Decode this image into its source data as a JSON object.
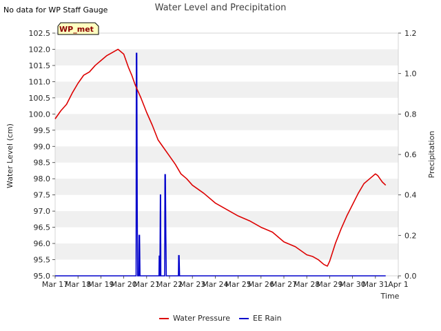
{
  "header": {
    "note": "No data for WP Staff Gauge",
    "title": "Water Level and Precipitation",
    "badge": "WP_met"
  },
  "colors": {
    "water_pressure": "#dd0000",
    "ee_rain": "#0000cc",
    "band": "#f0f0f0",
    "badge_fill": "#ffffc0",
    "badge_border": "#000000"
  },
  "chart_data": {
    "type": "line",
    "title": "Water Level and Precipitation",
    "xlabel": "Time",
    "ylabel": "Water Level (cm)",
    "y2label": "Precipitation",
    "xlim": [
      17,
      32
    ],
    "ylim": [
      95.0,
      102.5
    ],
    "y2lim": [
      0.0,
      1.2
    ],
    "grid": "horizontal bands",
    "legend_position": "bottom-center",
    "x_ticks": [
      {
        "v": 17,
        "label": "Mar 17"
      },
      {
        "v": 18,
        "label": "Mar 18"
      },
      {
        "v": 19,
        "label": "Mar 19"
      },
      {
        "v": 20,
        "label": "Mar 20"
      },
      {
        "v": 21,
        "label": "Mar 21"
      },
      {
        "v": 22,
        "label": "Mar 22"
      },
      {
        "v": 23,
        "label": "Mar 23"
      },
      {
        "v": 24,
        "label": "Mar 24"
      },
      {
        "v": 25,
        "label": "Mar 25"
      },
      {
        "v": 26,
        "label": "Mar 26"
      },
      {
        "v": 27,
        "label": "Mar 27"
      },
      {
        "v": 28,
        "label": "Mar 28"
      },
      {
        "v": 29,
        "label": "Mar 29"
      },
      {
        "v": 30,
        "label": "Mar 30"
      },
      {
        "v": 31,
        "label": "Mar 31"
      },
      {
        "v": 32,
        "label": "Apr 1"
      }
    ],
    "y_ticks": [
      {
        "v": 95.0,
        "label": "95.0"
      },
      {
        "v": 95.5,
        "label": "95.5"
      },
      {
        "v": 96.0,
        "label": "96.0"
      },
      {
        "v": 96.5,
        "label": "96.5"
      },
      {
        "v": 97.0,
        "label": "97.0"
      },
      {
        "v": 97.5,
        "label": "97.5"
      },
      {
        "v": 98.0,
        "label": "98.0"
      },
      {
        "v": 98.5,
        "label": "98.5"
      },
      {
        "v": 99.0,
        "label": "99.0"
      },
      {
        "v": 99.5,
        "label": "99.5"
      },
      {
        "v": 100.0,
        "label": "100.0"
      },
      {
        "v": 100.5,
        "label": "100.5"
      },
      {
        "v": 101.0,
        "label": "101.0"
      },
      {
        "v": 101.5,
        "label": "101.5"
      },
      {
        "v": 102.0,
        "label": "102.0"
      },
      {
        "v": 102.5,
        "label": "102.5"
      }
    ],
    "y2_ticks": [
      {
        "v": 0.0,
        "label": "0.0"
      },
      {
        "v": 0.2,
        "label": "0.2"
      },
      {
        "v": 0.4,
        "label": "0.4"
      },
      {
        "v": 0.6,
        "label": "0.6"
      },
      {
        "v": 0.8,
        "label": "0.8"
      },
      {
        "v": 1.0,
        "label": "1.0"
      },
      {
        "v": 1.2,
        "label": "1.2"
      }
    ],
    "series": [
      {
        "name": "Water Pressure",
        "axis": "left",
        "x": [
          17.0,
          17.25,
          17.5,
          17.75,
          18.0,
          18.25,
          18.5,
          18.75,
          19.0,
          19.25,
          19.5,
          19.75,
          20.0,
          20.1,
          20.2,
          20.35,
          20.5,
          20.75,
          21.0,
          21.25,
          21.5,
          21.75,
          22.0,
          22.25,
          22.5,
          22.75,
          23.0,
          23.5,
          24.0,
          24.5,
          25.0,
          25.5,
          26.0,
          26.5,
          27.0,
          27.5,
          28.0,
          28.25,
          28.5,
          28.75,
          28.9,
          29.0,
          29.25,
          29.5,
          29.75,
          30.0,
          30.25,
          30.5,
          30.75,
          31.0,
          31.1,
          31.2,
          31.3,
          31.45
        ],
        "y": [
          99.85,
          100.1,
          100.3,
          100.65,
          100.95,
          101.2,
          101.3,
          101.5,
          101.65,
          101.8,
          101.9,
          102.0,
          101.85,
          101.65,
          101.45,
          101.2,
          100.9,
          100.5,
          100.05,
          99.65,
          99.2,
          98.95,
          98.7,
          98.45,
          98.15,
          98.0,
          97.8,
          97.55,
          97.25,
          97.05,
          96.85,
          96.7,
          96.5,
          96.35,
          96.05,
          95.9,
          95.65,
          95.6,
          95.5,
          95.35,
          95.3,
          95.45,
          96.0,
          96.45,
          96.85,
          97.2,
          97.55,
          97.85,
          98.0,
          98.15,
          98.1,
          98.0,
          97.9,
          97.8
        ]
      },
      {
        "name": "EE Rain",
        "axis": "right",
        "x": [
          17.0,
          20.54,
          20.55,
          20.57,
          20.59,
          20.61,
          20.66,
          20.67,
          20.69,
          20.71,
          21.54,
          21.55,
          21.56,
          21.58,
          21.6,
          21.61,
          21.62,
          21.64,
          21.79,
          21.8,
          21.82,
          21.84,
          21.86,
          22.39,
          22.4,
          22.42,
          22.44,
          31.45
        ],
        "y": [
          0.0,
          0.0,
          1.1,
          1.1,
          0.3,
          0.0,
          0.0,
          0.2,
          0.2,
          0.0,
          0.0,
          0.1,
          0.0,
          0.0,
          0.4,
          0.4,
          0.0,
          0.0,
          0.0,
          0.5,
          0.5,
          0.2,
          0.0,
          0.0,
          0.1,
          0.1,
          0.0,
          0.0
        ]
      }
    ]
  }
}
